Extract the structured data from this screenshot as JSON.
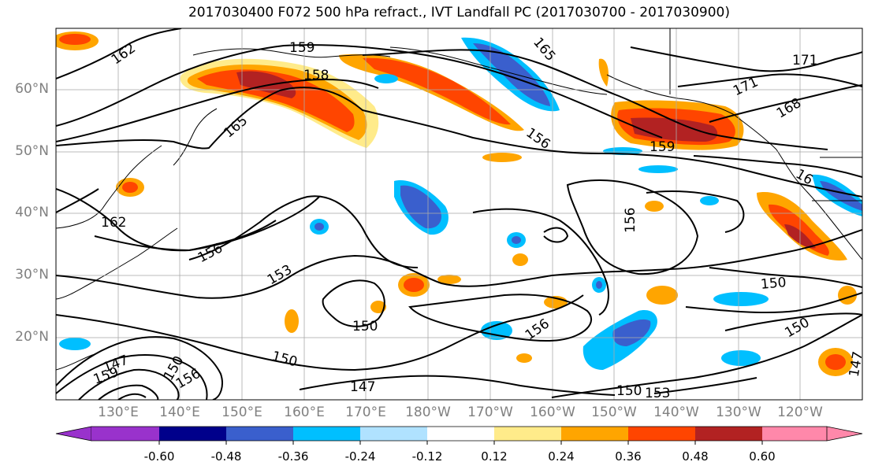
{
  "title": "2017030400 F072 500 hPa refract., IVT Landfall PC (2017030700 - 2017030900)",
  "map": {
    "lat_labels": [
      "60°N",
      "50°N",
      "40°N",
      "30°N",
      "20°N"
    ],
    "lon_labels": [
      "130°E",
      "140°E",
      "150°E",
      "160°E",
      "170°E",
      "180°W",
      "170°W",
      "160°W",
      "150°W",
      "140°W",
      "130°W",
      "120°W"
    ],
    "contour_labels": [
      "162",
      "159",
      "158",
      "165",
      "165",
      "171",
      "171",
      "168",
      "156",
      "159",
      "162",
      "156",
      "153",
      "156",
      "150",
      "150",
      "156",
      "150",
      "150",
      "147",
      "147",
      "150",
      "153",
      "159",
      "156",
      "150",
      "16",
      "147"
    ]
  },
  "colorbar": {
    "colors": [
      "#9932cc",
      "#00008b",
      "#3a5fcd",
      "#00bfff",
      "#b0e2ff",
      "#ffffff",
      "#ffeb8a",
      "#ffa500",
      "#ff4500",
      "#b22222",
      "#ff88aa"
    ],
    "tick_labels": [
      "-0.60",
      "-0.48",
      "-0.36",
      "-0.24",
      "-0.12",
      "0.12",
      "0.24",
      "0.36",
      "0.48",
      "0.60"
    ]
  }
}
